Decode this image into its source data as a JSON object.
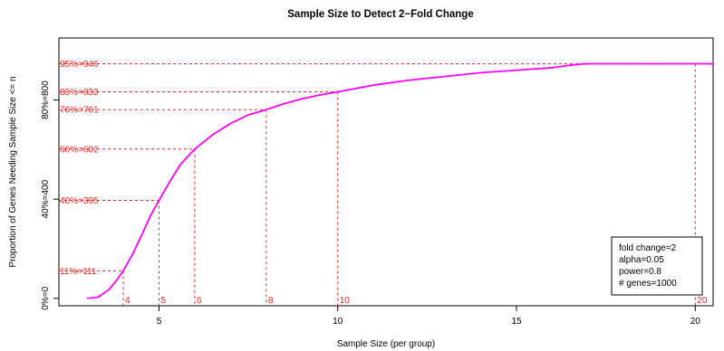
{
  "chart_data": {
    "type": "line",
    "title": "Sample Size to Detect 2−Fold Change",
    "xlabel": "Sample Size (per group)",
    "ylabel": "Proportion of Genes Needing Sample Size <= n",
    "xlim": [
      2.2,
      20.5
    ],
    "ylim": [
      -30,
      1050
    ],
    "x_ticks": [
      {
        "value": 5,
        "label": "5"
      },
      {
        "value": 10,
        "label": "10"
      },
      {
        "value": 15,
        "label": "15"
      },
      {
        "value": 20,
        "label": "20"
      }
    ],
    "y_ticks": [
      {
        "value": 0,
        "label": "0%=0"
      },
      {
        "value": 400,
        "label": "40%=400"
      },
      {
        "value": 800,
        "label": "80%=800"
      }
    ],
    "grid": false,
    "series": [
      {
        "color": "#ff00ff",
        "x": [
          3.0,
          3.3,
          3.6,
          3.8,
          4.0,
          4.25,
          4.5,
          4.75,
          5.0,
          5.3,
          5.6,
          6.0,
          6.5,
          7.0,
          7.5,
          8.0,
          8.5,
          9.0,
          9.5,
          10.0,
          11.0,
          12.0,
          13.0,
          14.0,
          15.0,
          16.0,
          16.5,
          16.9,
          17.5,
          18.0,
          19.0,
          20.0,
          20.5
        ],
        "y": [
          0,
          5,
          35,
          70,
          111,
          175,
          250,
          330,
          395,
          470,
          540,
          602,
          660,
          705,
          740,
          761,
          785,
          805,
          820,
          833,
          860,
          880,
          895,
          910,
          920,
          930,
          940,
          946,
          946,
          946,
          946,
          946,
          946
        ]
      }
    ],
    "reference_points": [
      {
        "x": 4,
        "y": 111,
        "label": "11%=111",
        "x_label": "4"
      },
      {
        "x": 5,
        "y": 395,
        "label": "40%=395",
        "x_label": "5"
      },
      {
        "x": 6,
        "y": 602,
        "label": "60%=602",
        "x_label": "6"
      },
      {
        "x": 8,
        "y": 761,
        "label": "76%=761",
        "x_label": "8"
      },
      {
        "x": 10,
        "y": 833,
        "label": "83%=833",
        "x_label": "10"
      },
      {
        "x": 20,
        "y": 946,
        "label": "95%=946",
        "x_label": "20"
      }
    ],
    "reference_color": "#ff2020",
    "legend": {
      "position": "bottom-right",
      "lines": [
        "fold change=2",
        "alpha=0.05",
        "power=0.8",
        "# genes=1000"
      ]
    }
  }
}
